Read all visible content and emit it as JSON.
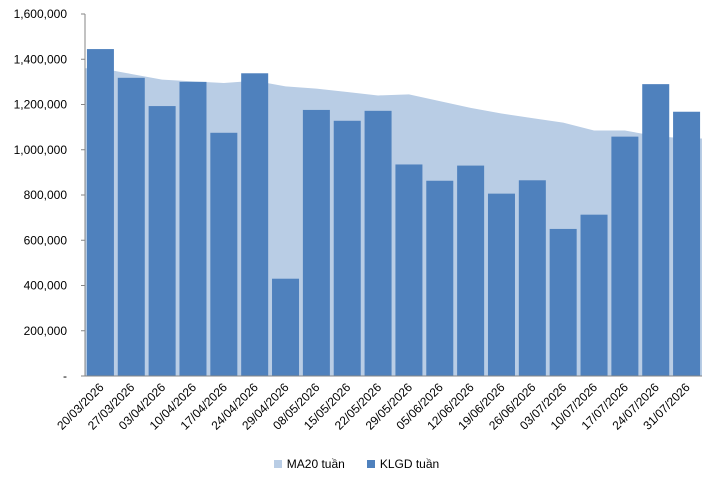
{
  "chart_data": {
    "type": "bar",
    "categories": [
      "20/03/2026",
      "27/03/2026",
      "03/04/2026",
      "10/04/2026",
      "17/04/2026",
      "24/04/2026",
      "29/04/2026",
      "08/05/2026",
      "15/05/2026",
      "22/05/2026",
      "29/05/2026",
      "05/06/2026",
      "12/06/2026",
      "19/06/2026",
      "26/06/2026",
      "03/07/2026",
      "10/07/2026",
      "17/07/2026",
      "24/07/2026",
      "31/07/2026"
    ],
    "series": [
      {
        "name": "KLGD tuần",
        "render": "bar",
        "color": "#4F81BD",
        "values": [
          1445000,
          1318000,
          1193000,
          1300000,
          1075000,
          1338000,
          430000,
          1176000,
          1128000,
          1172000,
          935000,
          863000,
          930000,
          806000,
          865000,
          650000,
          713000,
          1058000,
          1290000,
          1168000
        ]
      },
      {
        "name": "MA20 tuần",
        "render": "area",
        "color": "#B9CDE5",
        "values": [
          1360000,
          1335000,
          1310000,
          1302000,
          1295000,
          1305000,
          1280000,
          1270000,
          1255000,
          1240000,
          1245000,
          1215000,
          1185000,
          1160000,
          1140000,
          1120000,
          1085000,
          1085000,
          1060000,
          1050000
        ]
      }
    ],
    "ylim": [
      0,
      1600000
    ],
    "yticks": [
      "-",
      "200,000",
      "400,000",
      "600,000",
      "800,000",
      "1,000,000",
      "1,200,000",
      "1,400,000",
      "1,600,000"
    ],
    "grid": false,
    "legend_position": "bottom",
    "legend": [
      "MA20 tuần",
      "KLGD tuần"
    ]
  }
}
